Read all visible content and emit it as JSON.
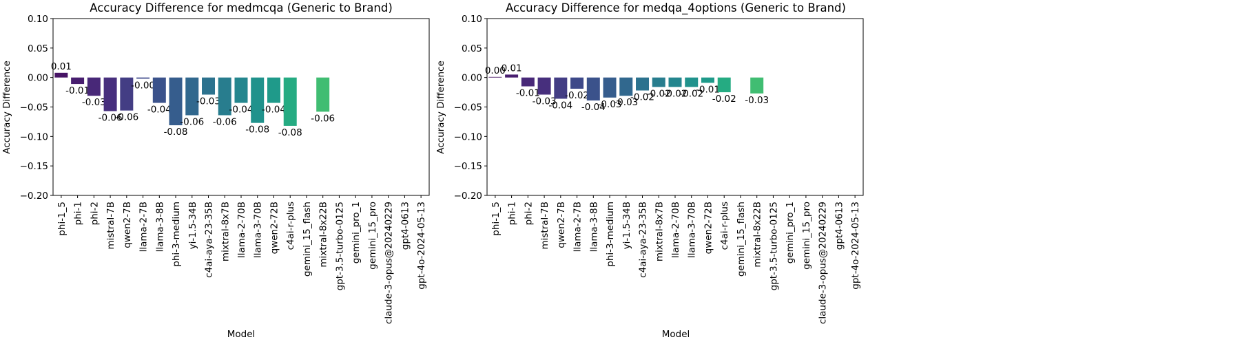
{
  "chart_data": [
    {
      "type": "bar",
      "title": "Accuracy Difference for medmcqa (Generic to Brand)",
      "xlabel": "Model",
      "ylabel": "Accuracy Difference",
      "ylim": [
        -0.2,
        0.1
      ],
      "yticks": [
        "0.10",
        "0.05",
        "0.00",
        "−0.05",
        "−0.10",
        "−0.15",
        "−0.20"
      ],
      "ytick_values": [
        0.1,
        0.05,
        0.0,
        -0.05,
        -0.1,
        -0.15,
        -0.2
      ],
      "grid": false,
      "categories": [
        "phi-1_5",
        "phi-1",
        "phi-2",
        "mistral-7B",
        "qwen2-7B",
        "llama-2-7B",
        "llama-3-8B",
        "phi-3-medium",
        "yi-1.5-34B",
        "c4ai-aya-23-35B",
        "mixtral-8x7B",
        "llama-2-70B",
        "llama-3-70B",
        "qwen2-72B",
        "c4ai-r-plus",
        "gemini_15_flash",
        "mixtral-8x22B",
        "gpt-3.5-turbo-0125",
        "gemini_pro_1",
        "gemini_15_pro",
        "claude-3-opus@20240229",
        "gpt4-0613",
        "gpt-4o-2024-05-13"
      ],
      "values": [
        0.008,
        -0.011,
        -0.031,
        -0.057,
        -0.056,
        -0.002,
        -0.043,
        -0.081,
        -0.064,
        -0.029,
        -0.064,
        -0.043,
        -0.077,
        -0.043,
        -0.082,
        null,
        -0.058,
        null,
        null,
        null,
        null,
        null,
        null
      ],
      "data_labels": [
        "0.01",
        "-0.01",
        "-0.03",
        "-0.06",
        "-0.06",
        "-0.00",
        "-0.04",
        "-0.08",
        "-0.06",
        "-0.03",
        "-0.06",
        "-0.04",
        "-0.08",
        "-0.04",
        "-0.08",
        "",
        "-0.06",
        "",
        "",
        "",
        "",
        "",
        ""
      ],
      "colors": [
        "#471465",
        "#481e6f",
        "#482878",
        "#472f7d",
        "#433d84",
        "#3e4989",
        "#3b528b",
        "#365d8d",
        "#31688e",
        "#2c728e",
        "#287d8e",
        "#24868e",
        "#20928c",
        "#1f9a8a",
        "#25ab82",
        "#2db27d",
        "#40bd72",
        "#57c666",
        "#6ccd5a",
        "#89d548",
        "#a8db34",
        "#c2df23",
        "#dfe318"
      ]
    },
    {
      "type": "bar",
      "title": "Accuracy Difference for medqa_4options (Generic to Brand)",
      "xlabel": "Model",
      "ylabel": "Accuracy Difference",
      "ylim": [
        -0.2,
        0.1
      ],
      "yticks": [
        "0.10",
        "0.05",
        "0.00",
        "−0.05",
        "−0.10",
        "−0.15",
        "−0.20"
      ],
      "ytick_values": [
        0.1,
        0.05,
        0.0,
        -0.05,
        -0.1,
        -0.15,
        -0.2
      ],
      "grid": false,
      "categories": [
        "phi-1_5",
        "phi-1",
        "phi-2",
        "mistral-7B",
        "qwen2-7B",
        "llama-2-7B",
        "llama-3-8B",
        "phi-3-medium",
        "yi-1.5-34B",
        "c4ai-aya-23-35B",
        "mixtral-8x7B",
        "llama-2-70B",
        "llama-3-70B",
        "qwen2-72B",
        "c4ai-r-plus",
        "gemini_15_flash",
        "mixtral-8x22B",
        "gpt-3.5-turbo-0125",
        "gemini_pro_1",
        "gemini_15_pro",
        "claude-3-opus@20240229",
        "gpt4-0613",
        "gpt-4o-2024-05-13"
      ],
      "values": [
        0.001,
        0.005,
        -0.015,
        -0.029,
        -0.036,
        -0.019,
        -0.039,
        -0.034,
        -0.031,
        -0.022,
        -0.016,
        -0.016,
        -0.016,
        -0.009,
        -0.025,
        null,
        -0.027,
        null,
        null,
        null,
        null,
        null,
        null
      ],
      "data_labels": [
        "0.00",
        "0.01",
        "-0.01",
        "-0.03",
        "-0.04",
        "-0.02",
        "-0.04",
        "-0.03",
        "-0.03",
        "-0.02",
        "-0.02",
        "-0.02",
        "-0.02",
        "-0.01",
        "-0.02",
        "",
        "-0.03",
        "",
        "",
        "",
        "",
        "",
        ""
      ],
      "colors": [
        "#471465",
        "#481e6f",
        "#482878",
        "#472f7d",
        "#433d84",
        "#3e4989",
        "#3b528b",
        "#365d8d",
        "#31688e",
        "#2c728e",
        "#287d8e",
        "#24868e",
        "#20928c",
        "#1f9a8a",
        "#25ab82",
        "#2db27d",
        "#40bd72",
        "#57c666",
        "#6ccd5a",
        "#89d548",
        "#a8db34",
        "#c2df23",
        "#dfe318"
      ]
    }
  ]
}
